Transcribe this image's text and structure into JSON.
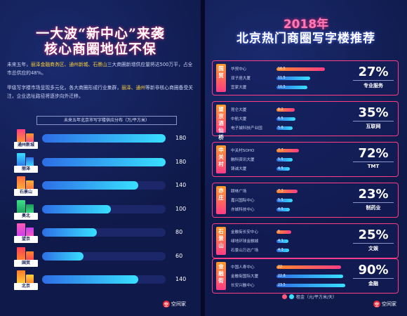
{
  "left": {
    "title_line1": "一大波“新中心”来袭",
    "title_line2": "核心商圈地位不保",
    "para1_a": "未来五年，",
    "para1_hl": "丽泽金融商务区、通州新城、石景山",
    "para1_b": "三大商圈新增供应量将达500万平，占全市总供应的48%。",
    "para2_a": "甲级写字楼市场呈现多元化，各大商圈形成行业集群，",
    "para2_hl": "丽泽、通州",
    "para2_b": "等新非核心商圈备受关注，企业选址路径将逐步向外迁移。",
    "chart_title": "未来五年北京市写字楼供应分布（万/平方米）",
    "bar_max": 180
  },
  "chart_data": {
    "type": "bar",
    "title": "未来五年北京市写字楼供应分布（万/平方米）",
    "categories": [
      "通州新城",
      "丽泽",
      "石景山",
      "奥北",
      "望京",
      "国贸",
      "北京"
    ],
    "values": [
      180,
      180,
      140,
      100,
      80,
      60,
      140
    ]
  },
  "right": {
    "year": "2018年",
    "title": "北京热门商圈写字楼推荐",
    "legend_label": "租金（元/平方米/天）",
    "rent_max": 24,
    "cards": [
      {
        "area": "国贸",
        "buildings": [
          "华贸中心",
          "双子座大厦",
          "宜家大厦"
        ],
        "rents": [
          16.5,
          11.5,
          10.5
        ],
        "pct": "27%",
        "industry": "专业服务"
      },
      {
        "area": "望京酒仙桥",
        "buildings": [
          "昆仑大厦",
          "中航大厦",
          "电子城科技产业园"
        ],
        "rents": [
          6.2,
          6.5,
          5.6
        ],
        "pct": "35%",
        "industry": "互联网"
      },
      {
        "area": "中关村",
        "buildings": [
          "中关村SOHO",
          "融科资讯大厦",
          "铸诚大厦"
        ],
        "rents": [
          7.7,
          5.5,
          4.5
        ],
        "pct": "72%",
        "industry": "TMT"
      },
      {
        "area": "亦庄",
        "buildings": [
          "颐林广场",
          "嘉兴国际中心",
          "亦城科技中心"
        ],
        "rents": [
          7.3,
          5.5,
          4.5
        ],
        "pct": "23%",
        "industry": "制药业"
      },
      {
        "area": "石景山",
        "buildings": [
          "金融街长安中心",
          "绿地环球金融城",
          "石景山万达广场"
        ],
        "rents": [
          5,
          4.1,
          4.3
        ],
        "pct": "25%",
        "industry": "文娱"
      },
      {
        "area": "金融街",
        "buildings": [
          "中国人寿中心",
          "金融街国际大厦",
          "长安兴融中心"
        ],
        "rents": [
          22,
          22.8,
          23.5
        ],
        "pct": "90%",
        "industry": "金融"
      }
    ]
  },
  "logo": {
    "mark": "空",
    "text": "空间家"
  },
  "colors": {
    "accent": "#ff3d86",
    "bar_blue": "#38e0ff",
    "highlight": "#ffd23a"
  }
}
